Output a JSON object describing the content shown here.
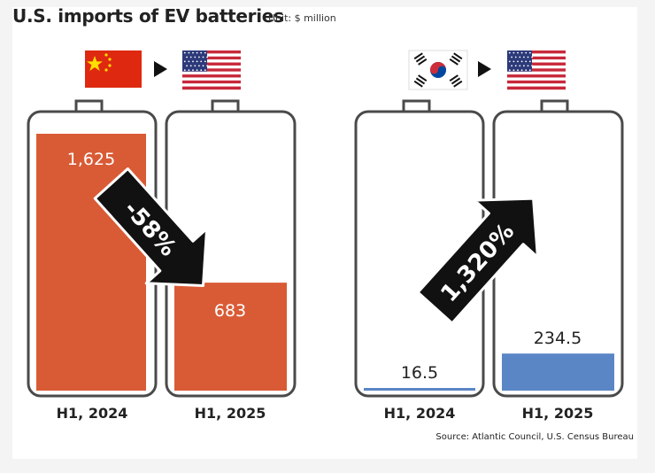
{
  "title": "U.S. imports of EV batteries",
  "unit": "Unit: $ million",
  "source": "Source: Atlantic Council, U.S. Census Bureau",
  "colors": {
    "china_fill": "#d95b35",
    "korea_fill": "#5b86c6",
    "battery_outline": "#4a4a4a",
    "arrow": "#111111"
  },
  "icons": {
    "china_flag": "china-flag-icon",
    "korea_flag": "south-korea-flag-icon",
    "us_flag": "us-flag-icon",
    "direction_arrow": "triangle-right-icon"
  },
  "chart_data": [
    {
      "type": "bar",
      "categories": [
        "H1, 2024",
        "H1, 2025"
      ],
      "values": [
        1625,
        683
      ],
      "value_labels": [
        "1,625",
        "683"
      ],
      "change_label": "-58%",
      "from": "China",
      "to": "United States"
    },
    {
      "type": "bar",
      "categories": [
        "H1, 2024",
        "H1, 2025"
      ],
      "values": [
        16.5,
        234.5
      ],
      "value_labels": [
        "16.5",
        "234.5"
      ],
      "change_label": "1,320%",
      "from": "South Korea",
      "to": "United States"
    }
  ]
}
